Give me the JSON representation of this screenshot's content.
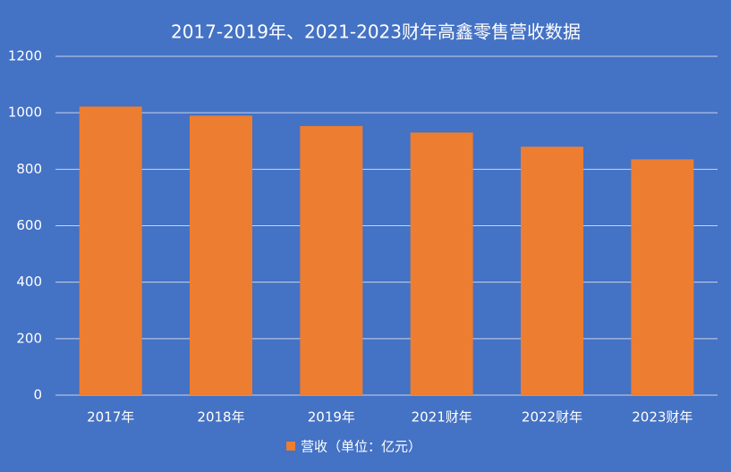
{
  "chart_data": {
    "type": "bar",
    "title": "2017-2019年、2021-2023财年高鑫零售营收数据",
    "categories": [
      "2017年",
      "2018年",
      "2019年",
      "2021财年",
      "2022财年",
      "2023财年"
    ],
    "series": [
      {
        "name": "营收（单位：亿元）",
        "color": "#ed7d31",
        "values": [
          1022,
          990,
          953,
          930,
          880,
          835
        ]
      }
    ],
    "ylim": [
      0,
      1200
    ],
    "yticks": [
      0,
      200,
      400,
      600,
      800,
      1000,
      1200
    ],
    "grid": true,
    "legend": "bottom"
  }
}
